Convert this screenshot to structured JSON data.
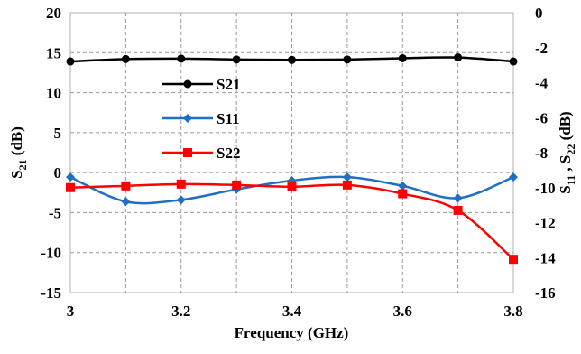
{
  "chart_data": {
    "type": "line",
    "x_values": [
      3.0,
      3.1,
      3.2,
      3.3,
      3.4,
      3.5,
      3.6,
      3.7,
      3.8
    ],
    "x_tick_labels": [
      "3",
      "3.2",
      "3.4",
      "3.6",
      "3.8"
    ],
    "x_tick_values": [
      3.0,
      3.2,
      3.4,
      3.6,
      3.8
    ],
    "xlim": [
      3.0,
      3.8
    ],
    "xlabel": "Frequency (GHz)",
    "left_axis": {
      "label_main": "S",
      "label_sub": "21",
      "label_tail": " (dB)",
      "ylim": [
        -15,
        20
      ],
      "tick_labels": [
        "20",
        "15",
        "10",
        "5",
        "0",
        "-5",
        "-10",
        "-15"
      ],
      "tick_values": [
        20,
        15,
        10,
        5,
        0,
        -5,
        -10,
        -15
      ]
    },
    "right_axis": {
      "label_main_1": "S",
      "label_sub_1": "11",
      "label_sep": " , ",
      "label_main_2": "S",
      "label_sub_2": "22",
      "label_tail": " (dB)",
      "ylim": [
        -16,
        0
      ],
      "tick_labels": [
        "0",
        "-2",
        "-4",
        "-6",
        "-8",
        "-10",
        "-12",
        "-14",
        "-16"
      ],
      "tick_values": [
        0,
        -2,
        -4,
        -6,
        -8,
        -10,
        -12,
        -14,
        -16
      ]
    },
    "series": [
      {
        "name": "S21",
        "axis": "left",
        "color": "#000000",
        "marker": "circle",
        "values": [
          13.9,
          14.2,
          14.25,
          14.15,
          14.1,
          14.15,
          14.3,
          14.4,
          13.9
        ]
      },
      {
        "name": "S11",
        "axis": "right",
        "color": "#1f6fc4",
        "marker": "diamond",
        "values": [
          -9.4,
          -10.8,
          -10.7,
          -10.1,
          -9.6,
          -9.4,
          -9.9,
          -10.6,
          -9.4
        ]
      },
      {
        "name": "S22",
        "axis": "right",
        "color": "#ff0000",
        "marker": "square",
        "values": [
          -10.0,
          -9.9,
          -9.8,
          -9.85,
          -9.95,
          -9.85,
          -10.35,
          -11.3,
          -14.1
        ]
      }
    ],
    "grid": true,
    "legend_position": "center-left"
  }
}
